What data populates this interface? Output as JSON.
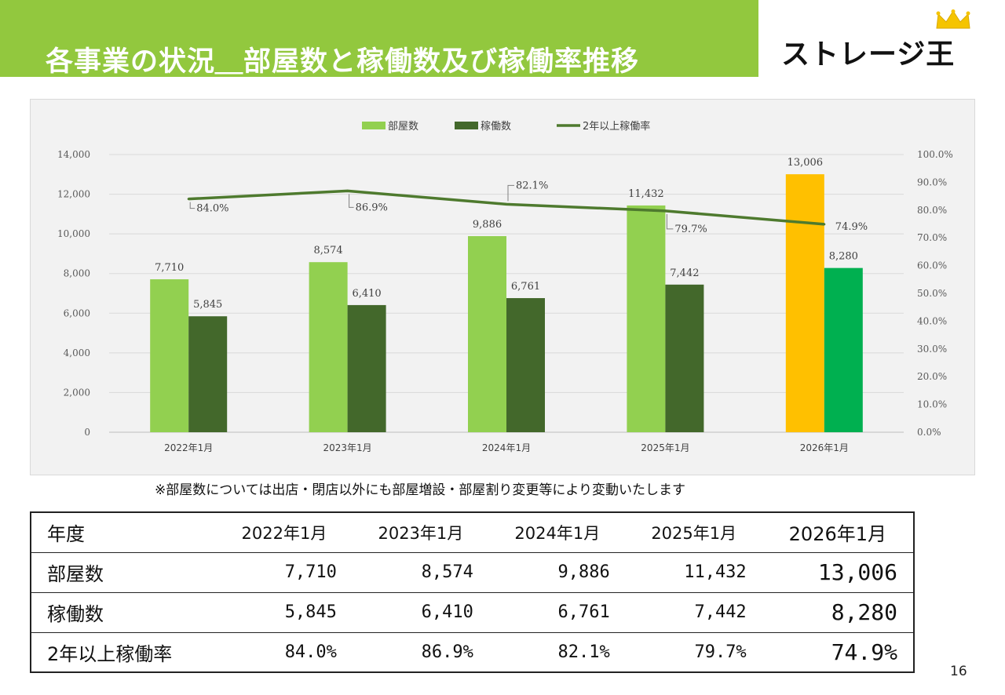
{
  "header": {
    "title": "各事業の状況＿部屋数と稼働数及び稼働率推移",
    "logo_text": "ストレージ王"
  },
  "chart_data": {
    "type": "bar",
    "categories": [
      "2022年1月",
      "2023年1月",
      "2024年1月",
      "2025年1月",
      "2026年1月"
    ],
    "series": [
      {
        "name": "部屋数",
        "kind": "bar",
        "axis": "left",
        "values": [
          7710,
          8574,
          9886,
          11432,
          13006
        ],
        "labels": [
          "7,710",
          "8,574",
          "9,886",
          "11,432",
          "13,006"
        ],
        "color": "#92d050",
        "highlight_color": "#ffc000"
      },
      {
        "name": "稼働数",
        "kind": "bar",
        "axis": "left",
        "values": [
          5845,
          6410,
          6761,
          7442,
          8280
        ],
        "labels": [
          "5,845",
          "6,410",
          "6,761",
          "7,442",
          "8,280"
        ],
        "color": "#43682b",
        "highlight_color": "#00b050"
      },
      {
        "name": "2年以上稼働率",
        "kind": "line",
        "axis": "right",
        "values": [
          84.0,
          86.9,
          82.1,
          79.7,
          74.9
        ],
        "labels": [
          "84.0%",
          "86.9%",
          "82.1%",
          "79.7%",
          "74.9%"
        ],
        "color": "#4e7a2e"
      }
    ],
    "y_left": {
      "min": 0,
      "max": 14000,
      "ticks": [
        "0",
        "2,000",
        "4,000",
        "6,000",
        "8,000",
        "10,000",
        "12,000",
        "14,000"
      ]
    },
    "y_right": {
      "min": 0,
      "max": 100,
      "ticks": [
        "0.0%",
        "10.0%",
        "20.0%",
        "30.0%",
        "40.0%",
        "50.0%",
        "60.0%",
        "70.0%",
        "80.0%",
        "90.0%",
        "100.0%"
      ]
    },
    "legend": "top-center",
    "grid": true
  },
  "note": "※部屋数については出店・閉店以外にも部屋増設・部屋割り変更等により変動いたします",
  "table": {
    "header": [
      "年度",
      "2022年1月",
      "2023年1月",
      "2024年1月",
      "2025年1月",
      "2026年1月"
    ],
    "rows": [
      [
        "部屋数",
        "7,710",
        "8,574",
        "9,886",
        "11,432",
        "13,006"
      ],
      [
        "稼働数",
        "5,845",
        "6,410",
        "6,761",
        "7,442",
        "8,280"
      ],
      [
        "2年以上稼働率",
        "84.0%",
        "86.9%",
        "82.1%",
        "79.7%",
        "74.9%"
      ]
    ]
  },
  "page_number": "16"
}
